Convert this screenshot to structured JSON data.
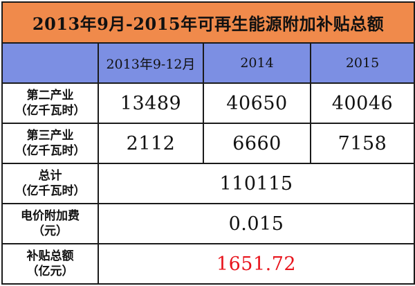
{
  "colors": {
    "title_bg": "#F08A4B",
    "header_bg": "#7C8FE3",
    "body_bg": "#FFFFFF",
    "highlight_text": "#E8141C",
    "border": "#1A1A1A"
  },
  "table": {
    "title": "2013年9月-2015年可再生能源附加补贴总额",
    "columns": [
      "2013年9-12月",
      "2014",
      "2015"
    ],
    "rows": [
      {
        "label_line1": "第二产业",
        "label_line2": "（亿千瓦时）",
        "values": [
          "13489",
          "40650",
          "40046"
        ]
      },
      {
        "label_line1": "第三产业",
        "label_line2": "（亿千瓦时）",
        "values": [
          "2112",
          "6660",
          "7158"
        ]
      }
    ],
    "total": {
      "label_line1": "总计",
      "label_line2": "（亿千瓦时）",
      "value": "110115"
    },
    "fee": {
      "label_line1": "电价附加费",
      "label_line2": "（元）",
      "value": "0.015"
    },
    "subsidy": {
      "label_line1": "补贴总额",
      "label_line2": "（亿元）",
      "value": "1651.72"
    }
  }
}
